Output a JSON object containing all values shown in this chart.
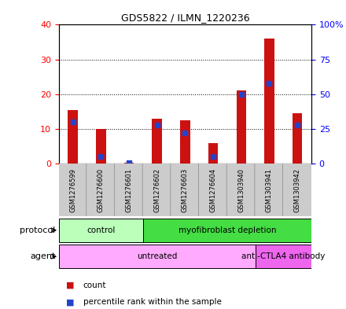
{
  "title": "GDS5822 / ILMN_1220236",
  "samples": [
    "GSM1276599",
    "GSM1276600",
    "GSM1276601",
    "GSM1276602",
    "GSM1276603",
    "GSM1276604",
    "GSM1303940",
    "GSM1303941",
    "GSM1303942"
  ],
  "counts": [
    15.5,
    10.0,
    0.2,
    13.0,
    12.5,
    6.0,
    21.0,
    36.0,
    14.5
  ],
  "percentile_ranks": [
    30.0,
    5.0,
    0.5,
    28.0,
    22.0,
    5.0,
    50.0,
    58.0,
    28.0
  ],
  "ylim_left": [
    0,
    40
  ],
  "ylim_right": [
    0,
    100
  ],
  "yticks_left": [
    0,
    10,
    20,
    30,
    40
  ],
  "yticks_right": [
    0,
    25,
    50,
    75,
    100
  ],
  "ytick_labels_right": [
    "0",
    "25",
    "50",
    "75",
    "100%"
  ],
  "bar_color": "#cc1111",
  "percentile_color": "#2244cc",
  "grid_color": "#000000",
  "protocol_groups": [
    {
      "label": "control",
      "start": 0,
      "end": 3,
      "color": "#bbffbb"
    },
    {
      "label": "myofibroblast depletion",
      "start": 3,
      "end": 9,
      "color": "#44dd44"
    }
  ],
  "agent_groups": [
    {
      "label": "untreated",
      "start": 0,
      "end": 7,
      "color": "#ffaaff"
    },
    {
      "label": "anti-CTLA4 antibody",
      "start": 7,
      "end": 9,
      "color": "#ee66ee"
    }
  ],
  "sample_bg_color": "#cccccc",
  "legend_count_color": "#cc1111",
  "legend_pct_color": "#2244cc",
  "label_left_protocol": "protocol",
  "label_left_agent": "agent"
}
